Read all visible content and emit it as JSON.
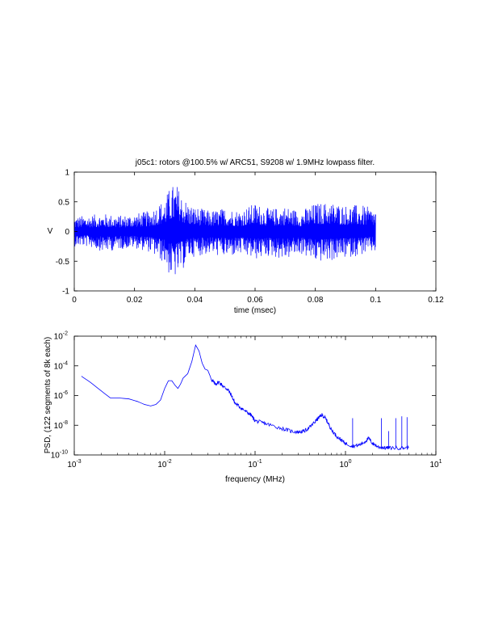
{
  "figure_title": "j05c1: rotors @100.5% w/ ARC51, S9208 w/ 1.9MHz lowpass filter.",
  "chart_data": [
    {
      "type": "line",
      "subplot": "top",
      "title": "j05c1: rotors @100.5% w/ ARC51, S9208 w/ 1.9MHz lowpass filter.",
      "xlabel": "time (msec)",
      "ylabel": "V",
      "xlim": [
        0,
        0.12
      ],
      "ylim": [
        -1,
        1
      ],
      "xticks": [
        "0",
        "0.02",
        "0.04",
        "0.06",
        "0.08",
        "0.1",
        "0.12"
      ],
      "yticks": [
        "-1",
        "-0.5",
        "0",
        "0.5",
        "1"
      ],
      "grid": false,
      "color": "#0000ff",
      "series": [
        {
          "values_note_x": [
            0,
            0.1
          ],
          "envelope_x": [
            0,
            0.005,
            0.01,
            0.015,
            0.02,
            0.025,
            0.03,
            0.032,
            0.034,
            0.036,
            0.038,
            0.04,
            0.045,
            0.05,
            0.055,
            0.06,
            0.065,
            0.07,
            0.075,
            0.08,
            0.085,
            0.09,
            0.095,
            0.1
          ],
          "envelope_max": [
            0.25,
            0.28,
            0.3,
            0.27,
            0.3,
            0.35,
            0.55,
            0.78,
            0.8,
            0.6,
            0.48,
            0.42,
            0.35,
            0.4,
            0.36,
            0.48,
            0.38,
            0.43,
            0.35,
            0.48,
            0.5,
            0.45,
            0.45,
            0.38
          ],
          "envelope_min": [
            -0.25,
            -0.26,
            -0.35,
            -0.3,
            -0.28,
            -0.35,
            -0.55,
            -0.8,
            -0.78,
            -0.65,
            -0.45,
            -0.42,
            -0.38,
            -0.44,
            -0.4,
            -0.48,
            -0.42,
            -0.48,
            -0.38,
            -0.52,
            -0.5,
            -0.45,
            -0.4,
            -0.35
          ]
        }
      ]
    },
    {
      "type": "line",
      "subplot": "bottom",
      "xlabel": "frequency (MHz)",
      "ylabel": "PSD, (122 segments of 8k each)",
      "xscale": "log",
      "yscale": "log",
      "xlim": [
        0.001,
        10
      ],
      "ylim": [
        1e-10,
        0.01
      ],
      "xticks": [
        {
          "base": "10",
          "exp": "-3"
        },
        {
          "base": "10",
          "exp": "-2"
        },
        {
          "base": "10",
          "exp": "-1"
        },
        {
          "base": "10",
          "exp": "0"
        },
        {
          "base": "10",
          "exp": "1"
        }
      ],
      "yticks": [
        {
          "base": "10",
          "exp": "-10"
        },
        {
          "base": "10",
          "exp": "-8"
        },
        {
          "base": "10",
          "exp": "-6"
        },
        {
          "base": "10",
          "exp": "-4"
        },
        {
          "base": "10",
          "exp": "-2"
        }
      ],
      "grid": false,
      "color": "#0000ff",
      "series": [
        {
          "x": [
            0.0012,
            0.0015,
            0.002,
            0.0025,
            0.003,
            0.004,
            0.005,
            0.006,
            0.007,
            0.008,
            0.009,
            0.01,
            0.011,
            0.012,
            0.013,
            0.014,
            0.015,
            0.016,
            0.018,
            0.02,
            0.022,
            0.024,
            0.026,
            0.028,
            0.03,
            0.033,
            0.036,
            0.04,
            0.045,
            0.05,
            0.055,
            0.06,
            0.07,
            0.08,
            0.09,
            0.1,
            0.12,
            0.15,
            0.2,
            0.25,
            0.3,
            0.35,
            0.4,
            0.45,
            0.5,
            0.55,
            0.6,
            0.65,
            0.7,
            0.8,
            0.9,
            1.0,
            1.2,
            1.4,
            1.6,
            1.8,
            2.0,
            2.3,
            2.7,
            3.2,
            4.0,
            5.0
          ],
          "y": [
            2e-05,
            8e-06,
            2e-06,
            7e-07,
            7e-07,
            6e-07,
            4e-07,
            2.5e-07,
            2e-07,
            2.5e-07,
            5e-07,
            3e-06,
            1e-05,
            1e-05,
            5e-06,
            3e-06,
            6e-06,
            1.5e-05,
            3e-05,
            0.0002,
            0.0025,
            0.001,
            0.00015,
            6e-05,
            5e-05,
            1.2e-05,
            6e-06,
            8e-06,
            4e-06,
            2.5e-06,
            1e-06,
            3e-07,
            1.5e-07,
            8e-08,
            5e-08,
            2e-08,
            1.5e-08,
            1e-08,
            6e-09,
            4e-09,
            3.5e-09,
            4e-09,
            7e-09,
            1.5e-08,
            3e-08,
            5e-08,
            3e-08,
            1.2e-08,
            5e-09,
            1.8e-09,
            1e-09,
            6e-10,
            4e-10,
            4.5e-10,
            7e-10,
            1.3e-09,
            6e-10,
            3.5e-10,
            3e-10,
            3e-10,
            3e-10,
            3e-10
          ]
        }
      ],
      "spikes": [
        {
          "x": 1.2,
          "y": 3e-08
        },
        {
          "x": 2.5,
          "y": 3e-08
        },
        {
          "x": 3.0,
          "y": 4e-09
        },
        {
          "x": 3.6,
          "y": 3e-08
        },
        {
          "x": 4.2,
          "y": 4e-08
        },
        {
          "x": 4.8,
          "y": 3.5e-08
        }
      ]
    }
  ]
}
